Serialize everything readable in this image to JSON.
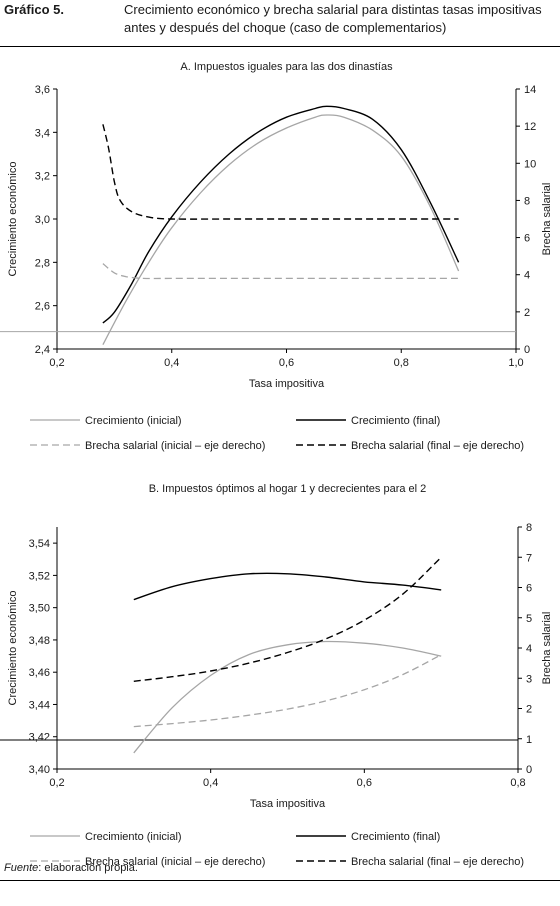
{
  "figure": {
    "label": "Gráfico 5.",
    "title": "Crecimiento económico y brecha salarial para distintas tasas impositivas antes y después del choque (caso de complementarios)",
    "source_prefix": "Fuente",
    "source_text": ": elaboración propia."
  },
  "colors": {
    "initial": "#a6a6a6",
    "final": "#000000",
    "axis": "#000000",
    "refline_a": "#a6a6a6",
    "refline_b": "#000000"
  },
  "chart_data": [
    {
      "type": "line",
      "title": "A. Impuestos iguales para las dos dinastías",
      "xlabel": "Tasa impositiva",
      "ylabel": "Crecimiento económico",
      "y2label": "Brecha salarial",
      "xlim": [
        0.2,
        1.0
      ],
      "ylim": [
        2.4,
        3.6
      ],
      "y2lim": [
        0,
        14
      ],
      "xticks": [
        "0,2",
        "0,4",
        "0,6",
        "0,8",
        "1,0"
      ],
      "xtick_values": [
        0.2,
        0.4,
        0.6,
        0.8,
        1.0
      ],
      "yticks": [
        "2,4",
        "2,6",
        "2,8",
        "3,0",
        "3,2",
        "3,4",
        "3,6"
      ],
      "ytick_values": [
        2.4,
        2.6,
        2.8,
        3.0,
        3.2,
        3.4,
        3.6
      ],
      "y2ticks": [
        "0",
        "2",
        "4",
        "6",
        "8",
        "10",
        "12",
        "14"
      ],
      "y2tick_values": [
        0,
        2,
        4,
        6,
        8,
        10,
        12,
        14
      ],
      "reference_line": {
        "axis": "y",
        "value": 2.48
      },
      "grid": false,
      "legend_position": "below",
      "series": [
        {
          "name": "Crecimiento (inicial)",
          "axis": "left",
          "style": "initial",
          "dash": "solid",
          "x": [
            0.28,
            0.32,
            0.36,
            0.4,
            0.45,
            0.5,
            0.55,
            0.6,
            0.65,
            0.67,
            0.7,
            0.75,
            0.8,
            0.85,
            0.9
          ],
          "y": [
            2.42,
            2.62,
            2.8,
            2.96,
            3.12,
            3.25,
            3.35,
            3.42,
            3.47,
            3.48,
            3.47,
            3.41,
            3.29,
            3.06,
            2.76
          ]
        },
        {
          "name": "Crecimiento (final)",
          "axis": "left",
          "style": "final",
          "dash": "solid",
          "x": [
            0.28,
            0.3,
            0.33,
            0.36,
            0.4,
            0.45,
            0.5,
            0.55,
            0.6,
            0.65,
            0.67,
            0.7,
            0.75,
            0.8,
            0.85,
            0.9
          ],
          "y": [
            2.52,
            2.57,
            2.7,
            2.85,
            3.01,
            3.17,
            3.3,
            3.4,
            3.47,
            3.51,
            3.52,
            3.51,
            3.46,
            3.32,
            3.08,
            2.8
          ]
        },
        {
          "name": "Brecha salarial (inicial – eje derecho)",
          "axis": "right",
          "style": "initial",
          "dash": "dashed",
          "x": [
            0.28,
            0.3,
            0.32,
            0.35,
            0.4,
            0.5,
            0.6,
            0.7,
            0.8,
            0.9
          ],
          "y": [
            4.6,
            4.1,
            3.9,
            3.8,
            3.8,
            3.8,
            3.8,
            3.8,
            3.8,
            3.8
          ]
        },
        {
          "name": "Brecha salarial (final – eje derecho)",
          "axis": "right",
          "style": "final",
          "dash": "dashed",
          "x": [
            0.28,
            0.29,
            0.3,
            0.31,
            0.33,
            0.36,
            0.4,
            0.5,
            0.6,
            0.7,
            0.8,
            0.9
          ],
          "y": [
            12.1,
            10.8,
            9.0,
            8.0,
            7.4,
            7.1,
            7.0,
            7.0,
            7.0,
            7.0,
            7.0,
            7.0
          ]
        }
      ]
    },
    {
      "type": "line",
      "title": "B. Impuestos óptimos al hogar 1 y decrecientes para el 2",
      "xlabel": "Tasa impositiva",
      "ylabel": "Crecimiento económico",
      "y2label": "Brecha salarial",
      "xlim": [
        0.2,
        0.8
      ],
      "ylim": [
        3.4,
        3.55
      ],
      "y2lim": [
        0,
        8
      ],
      "xticks": [
        "0,2",
        "0,4",
        "0,6",
        "0,8"
      ],
      "xtick_values": [
        0.2,
        0.4,
        0.6,
        0.8
      ],
      "yticks": [
        "3,40",
        "3,42",
        "3,44",
        "3,46",
        "3,48",
        "3,50",
        "3,52",
        "3,54"
      ],
      "ytick_values": [
        3.4,
        3.42,
        3.44,
        3.46,
        3.48,
        3.5,
        3.52,
        3.54
      ],
      "y2ticks": [
        "0",
        "1",
        "2",
        "3",
        "4",
        "5",
        "6",
        "7",
        "8"
      ],
      "y2tick_values": [
        0,
        1,
        2,
        3,
        4,
        5,
        6,
        7,
        8
      ],
      "reference_line": {
        "axis": "y",
        "value": 3.418
      },
      "grid": false,
      "legend_position": "below",
      "series": [
        {
          "name": "Crecimiento (inicial)",
          "axis": "left",
          "style": "initial",
          "dash": "solid",
          "x": [
            0.3,
            0.35,
            0.4,
            0.45,
            0.5,
            0.55,
            0.6,
            0.65,
            0.7
          ],
          "y": [
            3.41,
            3.438,
            3.458,
            3.471,
            3.477,
            3.479,
            3.478,
            3.475,
            3.47
          ]
        },
        {
          "name": "Crecimiento (final)",
          "axis": "left",
          "style": "final",
          "dash": "solid",
          "x": [
            0.3,
            0.35,
            0.4,
            0.45,
            0.5,
            0.55,
            0.6,
            0.65,
            0.7
          ],
          "y": [
            3.505,
            3.513,
            3.518,
            3.521,
            3.521,
            3.519,
            3.516,
            3.514,
            3.511
          ]
        },
        {
          "name": "Brecha salarial (inicial – eje derecho)",
          "axis": "right",
          "style": "initial",
          "dash": "dashed",
          "x": [
            0.3,
            0.35,
            0.4,
            0.45,
            0.5,
            0.55,
            0.6,
            0.65,
            0.7
          ],
          "y": [
            1.4,
            1.5,
            1.62,
            1.78,
            1.98,
            2.25,
            2.62,
            3.12,
            3.78
          ]
        },
        {
          "name": "Brecha salarial (final – eje derecho)",
          "axis": "right",
          "style": "final",
          "dash": "dashed",
          "x": [
            0.3,
            0.35,
            0.4,
            0.45,
            0.5,
            0.55,
            0.6,
            0.65,
            0.7
          ],
          "y": [
            2.9,
            3.05,
            3.24,
            3.5,
            3.85,
            4.3,
            4.92,
            5.78,
            7.0
          ]
        }
      ]
    }
  ]
}
